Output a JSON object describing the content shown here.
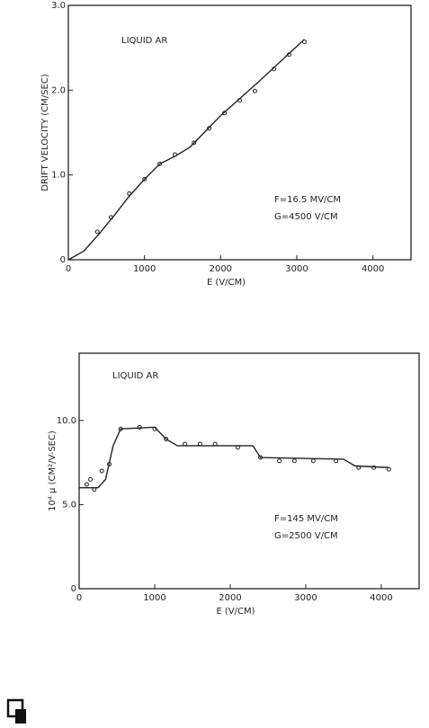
{
  "chart_data": [
    {
      "type": "scatter",
      "xlabel": "E (V/CM)",
      "ylabel": "DRIFT VELOCITY (CM/SEC)",
      "annotations": [
        "LIQUID AR",
        "F=16.5 MV/CM",
        "G=4500 V/CM"
      ],
      "xlim": [
        0,
        4500
      ],
      "ylim": [
        0,
        3
      ],
      "xticks": [
        0,
        1000,
        2000,
        3000,
        4000
      ],
      "yticks": [
        0,
        {
          "value": 1,
          "label": "1.0"
        },
        {
          "value": 2,
          "label": "2.0"
        },
        {
          "value": 3,
          "label": "3.0"
        }
      ],
      "color": "#222",
      "series": [
        {
          "mode": "markers",
          "x": [
            380,
            560,
            800,
            1000,
            1200,
            1400,
            1650,
            1850,
            2050,
            2250,
            2450,
            2700,
            2900,
            3100
          ],
          "values": [
            0.33,
            0.5,
            0.78,
            0.95,
            1.13,
            1.24,
            1.38,
            1.55,
            1.73,
            1.88,
            1.99,
            2.25,
            2.42,
            2.57
          ]
        },
        {
          "mode": "line",
          "x": [
            0,
            200,
            400,
            600,
            800,
            1000,
            1200,
            1400,
            1600,
            2000,
            2500,
            3100
          ],
          "values": [
            0,
            0.1,
            0.3,
            0.52,
            0.75,
            0.95,
            1.13,
            1.22,
            1.33,
            1.7,
            2.1,
            2.6
          ]
        }
      ]
    },
    {
      "type": "scatter",
      "xlabel": "E (V/CM)",
      "ylabel": "10⁴ μ (CM²/V-SEC)",
      "annotations": [
        "LIQUID AR",
        "F=145 MV/CM",
        "G=2500 V/CM"
      ],
      "xlim": [
        0,
        4500
      ],
      "ylim": [
        0,
        14
      ],
      "xticks": [
        0,
        1000,
        2000,
        3000,
        4000
      ],
      "yticks": [
        0,
        {
          "value": 5,
          "label": "5.0"
        },
        {
          "value": 10,
          "label": "10.0"
        }
      ],
      "color": "#222",
      "series": [
        {
          "mode": "markers",
          "x": [
            100,
            150,
            200,
            300,
            400,
            550,
            800,
            1000,
            1150,
            1400,
            1600,
            1800,
            2100,
            2400,
            2650,
            2850,
            3100,
            3400,
            3700,
            3900,
            4100
          ],
          "values": [
            6.2,
            6.5,
            5.9,
            7.0,
            7.4,
            9.5,
            9.6,
            9.5,
            8.9,
            8.6,
            8.6,
            8.6,
            8.4,
            7.8,
            7.6,
            7.6,
            7.6,
            7.6,
            7.2,
            7.2,
            7.1
          ]
        },
        {
          "mode": "line",
          "x": [
            0,
            250,
            350,
            450,
            550,
            1000,
            1150,
            1300,
            2300,
            2400,
            3500,
            3650,
            4100
          ],
          "values": [
            6.0,
            6.0,
            6.5,
            8.5,
            9.5,
            9.6,
            8.9,
            8.5,
            8.5,
            7.8,
            7.7,
            7.3,
            7.2
          ]
        }
      ]
    }
  ]
}
